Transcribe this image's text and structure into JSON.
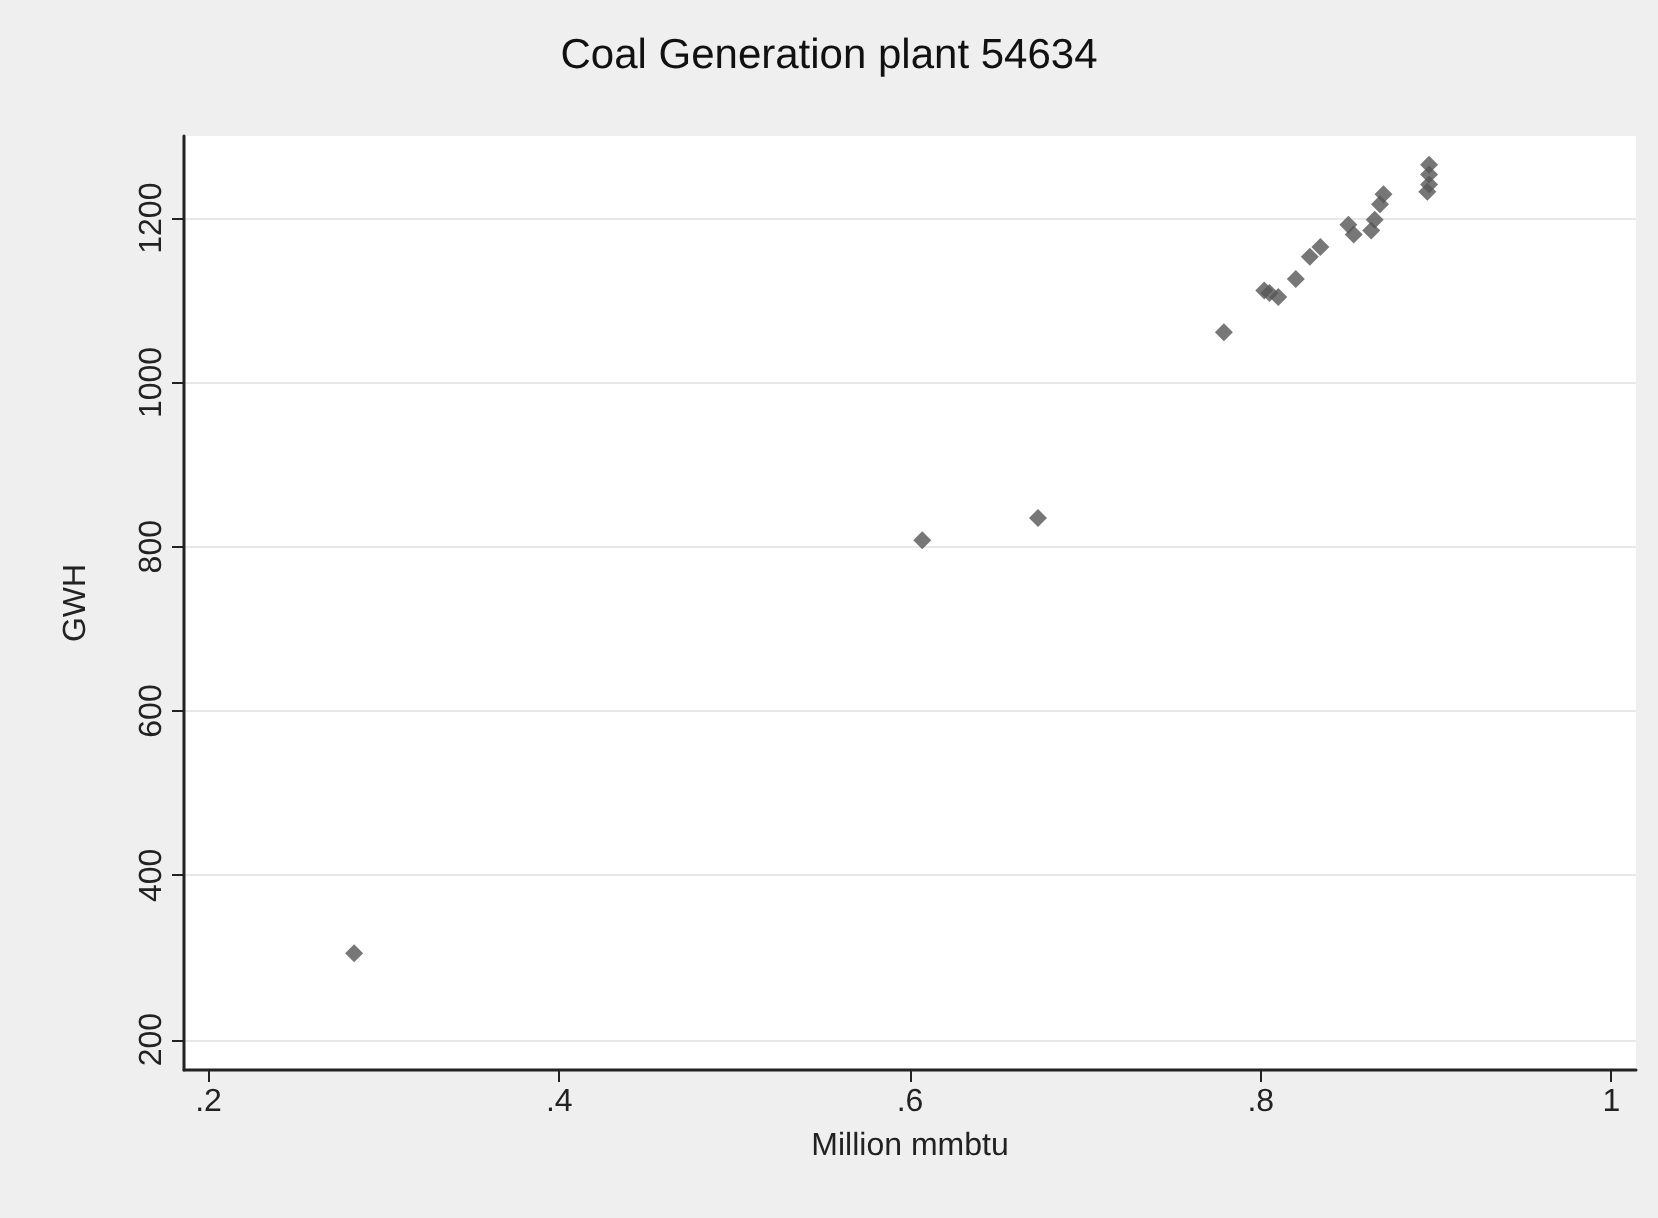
{
  "chart_data": {
    "type": "scatter",
    "title": "Coal Generation plant 54634",
    "xlabel": "Million mmbtu",
    "ylabel": "GWH",
    "x": [
      0.283,
      0.607,
      0.673,
      0.779,
      0.802,
      0.805,
      0.81,
      0.82,
      0.828,
      0.834,
      0.85,
      0.853,
      0.863,
      0.865,
      0.868,
      0.87,
      0.895,
      0.896,
      0.896,
      0.896
    ],
    "values": [
      305,
      808,
      835,
      1061,
      1112,
      1109,
      1104,
      1126,
      1153,
      1165,
      1192,
      1180,
      1185,
      1198,
      1217,
      1229,
      1232,
      1241,
      1253,
      1265
    ],
    "color": "#555555",
    "marker": "diamond",
    "xlim": [
      0.186,
      1.014
    ],
    "ylim": [
      163,
      1300
    ],
    "xticks": [
      {
        "value": 0.2,
        "label": ".2"
      },
      {
        "value": 0.4,
        "label": ".4"
      },
      {
        "value": 0.6,
        "label": ".6"
      },
      {
        "value": 0.8,
        "label": ".8"
      },
      1
    ],
    "yticks": [
      200,
      400,
      600,
      800,
      1000,
      1200
    ],
    "grid": "y"
  }
}
